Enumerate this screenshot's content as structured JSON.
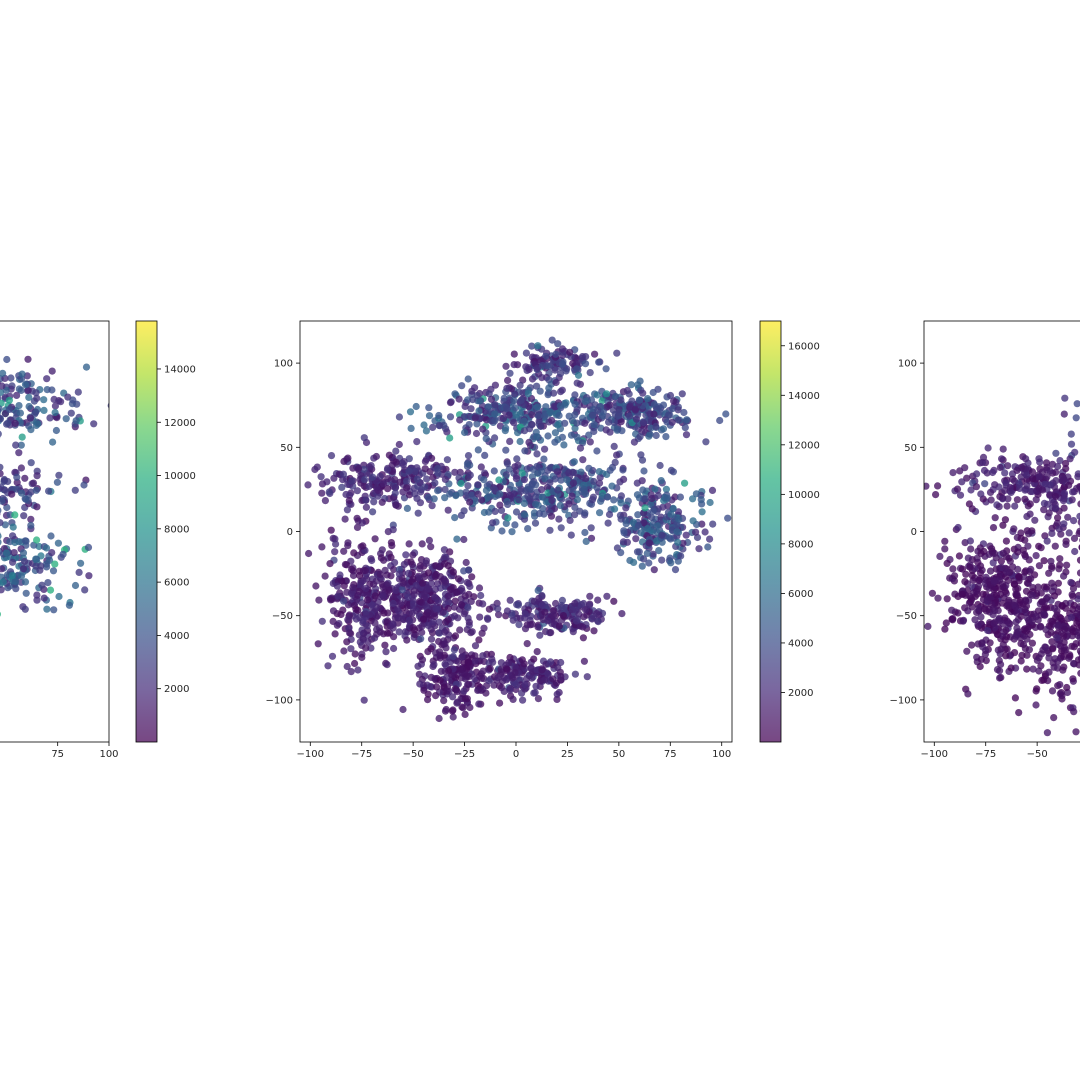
{
  "chart_data": [
    {
      "type": "scatter",
      "visible": "partial-left",
      "xlim": [
        -110,
        100
      ],
      "ylim": [
        -125,
        125
      ],
      "xticks": [
        75,
        100
      ],
      "xtick_labels": [
        "75",
        "100"
      ],
      "yticks": [],
      "ytick_labels": [],
      "colormap": "viridis",
      "color_range": [
        0,
        15800
      ],
      "colorbar_ticks": [
        2000,
        4000,
        6000,
        8000,
        10000,
        12000,
        14000
      ],
      "colorbar_tick_labels": [
        "2000",
        "4000",
        "6000",
        "8000",
        "10000",
        "12000",
        "14000"
      ],
      "clusters": [
        {
          "cx": 35,
          "cy": 75,
          "rx": 45,
          "ry": 20,
          "n": 360,
          "color_mean": 3500
        },
        {
          "cx": 40,
          "cy": 25,
          "rx": 28,
          "ry": 14,
          "n": 170,
          "color_mean": 2600
        },
        {
          "cx": 40,
          "cy": -18,
          "rx": 42,
          "ry": 24,
          "n": 380,
          "color_mean": 4000
        }
      ]
    },
    {
      "type": "scatter",
      "visible": "full",
      "xlim": [
        -105,
        105
      ],
      "ylim": [
        -125,
        125
      ],
      "xticks": [
        -100,
        -75,
        -50,
        -25,
        0,
        25,
        50,
        75,
        100
      ],
      "xtick_labels": [
        "−100",
        "−75",
        "−50",
        "−25",
        "0",
        "25",
        "50",
        "75",
        "100"
      ],
      "yticks": [
        100,
        50,
        0,
        -50,
        -100
      ],
      "ytick_labels": [
        "100",
        "50",
        "0",
        "−50",
        "−100"
      ],
      "colormap": "viridis",
      "color_range": [
        0,
        17000
      ],
      "colorbar_ticks": [
        2000,
        4000,
        6000,
        8000,
        10000,
        12000,
        14000,
        16000
      ],
      "colorbar_tick_labels": [
        "2000",
        "4000",
        "6000",
        "8000",
        "10000",
        "12000",
        "14000",
        "16000"
      ],
      "clusters": [
        {
          "cx": 18,
          "cy": 100,
          "rx": 20,
          "ry": 10,
          "n": 120,
          "color_mean": 2600
        },
        {
          "cx": 5,
          "cy": 70,
          "rx": 40,
          "ry": 15,
          "n": 320,
          "color_mean": 3800
        },
        {
          "cx": 60,
          "cy": 70,
          "rx": 25,
          "ry": 12,
          "n": 200,
          "color_mean": 3300
        },
        {
          "cx": -60,
          "cy": 30,
          "rx": 30,
          "ry": 16,
          "n": 230,
          "color_mean": 2000
        },
        {
          "cx": 10,
          "cy": 25,
          "rx": 40,
          "ry": 20,
          "n": 380,
          "color_mean": 3500
        },
        {
          "cx": 70,
          "cy": 5,
          "rx": 20,
          "ry": 22,
          "n": 220,
          "color_mean": 3800
        },
        {
          "cx": -70,
          "cy": -40,
          "rx": 22,
          "ry": 35,
          "n": 320,
          "color_mean": 1400
        },
        {
          "cx": -40,
          "cy": -40,
          "rx": 20,
          "ry": 25,
          "n": 280,
          "color_mean": 1500
        },
        {
          "cx": -30,
          "cy": -85,
          "rx": 15,
          "ry": 20,
          "n": 180,
          "color_mean": 1200
        },
        {
          "cx": 20,
          "cy": -50,
          "rx": 25,
          "ry": 10,
          "n": 170,
          "color_mean": 1900
        },
        {
          "cx": 5,
          "cy": -85,
          "rx": 20,
          "ry": 12,
          "n": 160,
          "color_mean": 1600
        }
      ]
    },
    {
      "type": "scatter",
      "visible": "partial-right",
      "xlim": [
        -105,
        105
      ],
      "ylim": [
        -125,
        125
      ],
      "xticks": [
        -100,
        -75,
        -50
      ],
      "xtick_labels": [
        "−100",
        "−75",
        "−50"
      ],
      "yticks": [
        100,
        50,
        0,
        -50,
        -100
      ],
      "ytick_labels": [
        "100",
        "50",
        "0",
        "−50",
        "−100"
      ],
      "colormap": "viridis",
      "color_range": [
        0,
        17000
      ],
      "clusters": [
        {
          "cx": -10,
          "cy": 55,
          "rx": 25,
          "ry": 20,
          "n": 180,
          "color_mean": 2600
        },
        {
          "cx": -55,
          "cy": 30,
          "rx": 30,
          "ry": 15,
          "n": 180,
          "color_mean": 1400
        },
        {
          "cx": -20,
          "cy": 10,
          "rx": 35,
          "ry": 20,
          "n": 200,
          "color_mean": 1400
        },
        {
          "cx": -70,
          "cy": -40,
          "rx": 25,
          "ry": 35,
          "n": 360,
          "color_mean": 800
        },
        {
          "cx": -30,
          "cy": -60,
          "rx": 35,
          "ry": 40,
          "n": 420,
          "color_mean": 700
        }
      ]
    }
  ]
}
